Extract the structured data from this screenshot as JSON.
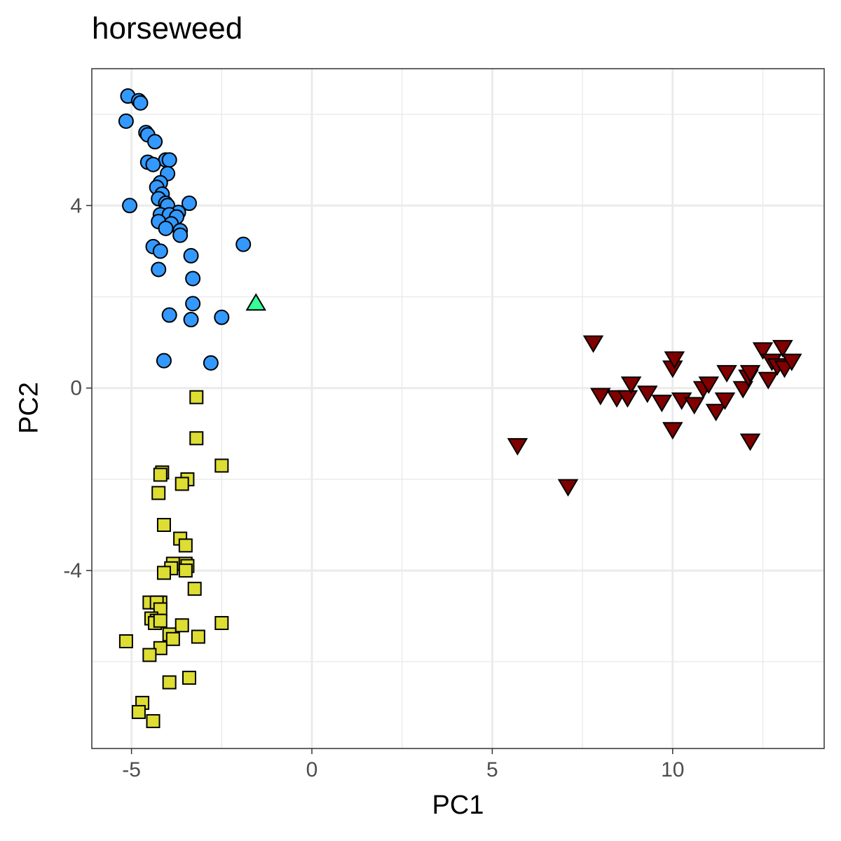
{
  "chart_data": {
    "type": "scatter",
    "title": "horseweed",
    "xlabel": "PC1",
    "ylabel": "PC2",
    "xlim": [
      -6.1,
      14.2
    ],
    "ylim": [
      -7.9,
      7.0
    ],
    "xticks": [
      -5,
      0,
      5,
      10
    ],
    "xtick_labels": [
      "-5",
      "0",
      "5",
      "10"
    ],
    "yticks": [
      -4,
      0,
      4
    ],
    "ytick_labels": [
      "-4",
      "0",
      "4"
    ],
    "grid": true,
    "legend": "none",
    "series": [
      {
        "marker": "circle",
        "color": "#3399FF",
        "points": [
          [
            -5.1,
            6.4
          ],
          [
            -4.8,
            6.3
          ],
          [
            -4.75,
            6.25
          ],
          [
            -5.15,
            5.85
          ],
          [
            -4.6,
            5.6
          ],
          [
            -4.55,
            5.55
          ],
          [
            -4.35,
            5.4
          ],
          [
            -4.05,
            5.0
          ],
          [
            -3.95,
            5.0
          ],
          [
            -4.55,
            4.95
          ],
          [
            -4.4,
            4.9
          ],
          [
            -4.0,
            4.7
          ],
          [
            -4.2,
            4.5
          ],
          [
            -4.3,
            4.4
          ],
          [
            -4.15,
            4.25
          ],
          [
            -4.25,
            4.15
          ],
          [
            -5.05,
            4.0
          ],
          [
            -3.4,
            4.05
          ],
          [
            -4.05,
            4.05
          ],
          [
            -4.0,
            4.0
          ],
          [
            -3.7,
            3.85
          ],
          [
            -4.2,
            3.8
          ],
          [
            -3.95,
            3.8
          ],
          [
            -3.75,
            3.75
          ],
          [
            -4.25,
            3.65
          ],
          [
            -3.9,
            3.6
          ],
          [
            -4.05,
            3.5
          ],
          [
            -3.65,
            3.45
          ],
          [
            -3.65,
            3.35
          ],
          [
            -4.4,
            3.1
          ],
          [
            -4.2,
            3.0
          ],
          [
            -1.9,
            3.15
          ],
          [
            -3.35,
            2.9
          ],
          [
            -4.25,
            2.6
          ],
          [
            -3.3,
            2.4
          ],
          [
            -3.3,
            1.85
          ],
          [
            -3.95,
            1.6
          ],
          [
            -3.35,
            1.5
          ],
          [
            -2.5,
            1.55
          ],
          [
            -4.1,
            0.6
          ],
          [
            -2.8,
            0.55
          ]
        ]
      },
      {
        "marker": "triangle-up",
        "color": "#33FF99",
        "points": [
          [
            -1.55,
            1.85
          ]
        ]
      },
      {
        "marker": "square",
        "color": "#DDDD33",
        "points": [
          [
            -3.2,
            -0.2
          ],
          [
            -3.2,
            -1.1
          ],
          [
            -2.5,
            -1.7
          ],
          [
            -4.15,
            -1.85
          ],
          [
            -4.2,
            -1.9
          ],
          [
            -3.45,
            -2.0
          ],
          [
            -3.6,
            -2.1
          ],
          [
            -4.25,
            -2.3
          ],
          [
            -4.1,
            -3.0
          ],
          [
            -3.65,
            -3.3
          ],
          [
            -3.5,
            -3.45
          ],
          [
            -3.85,
            -3.85
          ],
          [
            -3.5,
            -3.85
          ],
          [
            -3.9,
            -3.95
          ],
          [
            -3.45,
            -3.9
          ],
          [
            -3.5,
            -4.0
          ],
          [
            -4.1,
            -4.05
          ],
          [
            -3.25,
            -4.4
          ],
          [
            -4.2,
            -4.7
          ],
          [
            -4.5,
            -4.7
          ],
          [
            -4.3,
            -4.7
          ],
          [
            -4.2,
            -4.85
          ],
          [
            -4.45,
            -5.05
          ],
          [
            -4.3,
            -5.1
          ],
          [
            -4.35,
            -5.15
          ],
          [
            -4.2,
            -5.1
          ],
          [
            -3.6,
            -5.2
          ],
          [
            -2.5,
            -5.15
          ],
          [
            -5.15,
            -5.55
          ],
          [
            -3.95,
            -5.4
          ],
          [
            -3.85,
            -5.5
          ],
          [
            -3.15,
            -5.45
          ],
          [
            -4.2,
            -5.7
          ],
          [
            -4.5,
            -5.85
          ],
          [
            -3.95,
            -6.45
          ],
          [
            -3.4,
            -6.35
          ],
          [
            -4.7,
            -6.9
          ],
          [
            -4.8,
            -7.1
          ],
          [
            -4.4,
            -7.3
          ]
        ]
      },
      {
        "marker": "triangle-down",
        "color": "#800000",
        "points": [
          [
            5.7,
            -1.25
          ],
          [
            7.1,
            -2.15
          ],
          [
            7.8,
            1.0
          ],
          [
            8.0,
            -0.15
          ],
          [
            8.45,
            -0.2
          ],
          [
            8.75,
            -0.2
          ],
          [
            8.85,
            0.1
          ],
          [
            9.3,
            -0.1
          ],
          [
            9.7,
            -0.3
          ],
          [
            10.0,
            0.45
          ],
          [
            10.05,
            0.65
          ],
          [
            10.0,
            -0.9
          ],
          [
            10.25,
            -0.25
          ],
          [
            10.6,
            -0.35
          ],
          [
            10.85,
            0.0
          ],
          [
            11.0,
            0.1
          ],
          [
            11.2,
            -0.5
          ],
          [
            11.45,
            -0.25
          ],
          [
            11.5,
            0.35
          ],
          [
            11.95,
            0.0
          ],
          [
            12.1,
            0.25
          ],
          [
            12.15,
            0.35
          ],
          [
            12.15,
            -1.15
          ],
          [
            12.5,
            0.85
          ],
          [
            12.65,
            0.2
          ],
          [
            12.75,
            0.6
          ],
          [
            12.9,
            0.5
          ],
          [
            13.05,
            0.9
          ],
          [
            13.1,
            0.45
          ],
          [
            13.3,
            0.6
          ]
        ]
      }
    ]
  }
}
